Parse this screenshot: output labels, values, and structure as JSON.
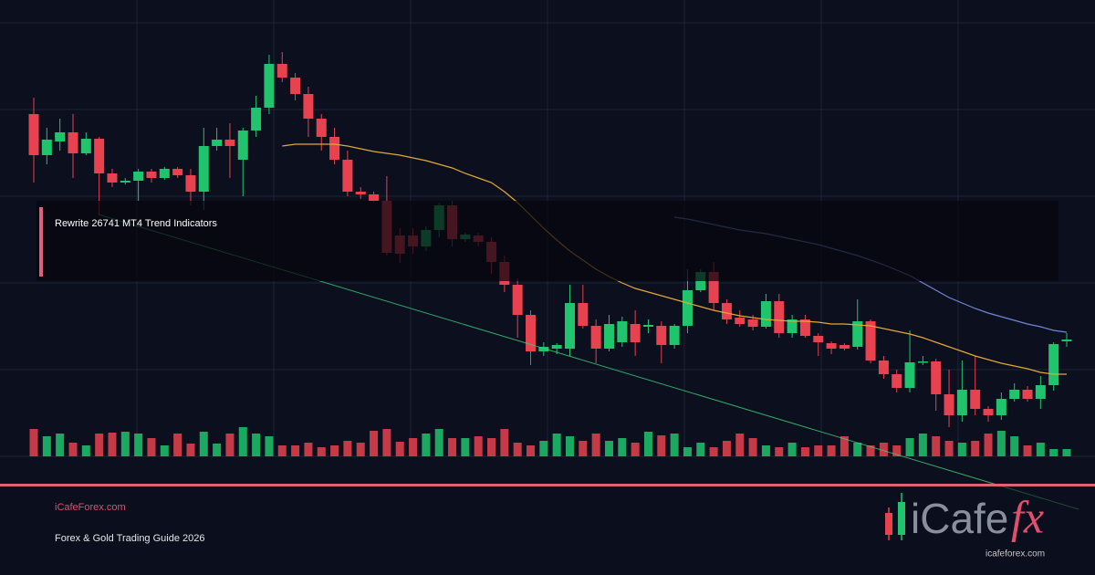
{
  "chart_data": {
    "type": "candlestick",
    "title": "Rewrite 26741 MT4 Trend Indicators",
    "site": "iCafeForex.com",
    "subtitle": "Forex & Gold Trading Guide 2026",
    "logo_text": "iCafe",
    "logo_fx": "fx",
    "logo_url": "icafeforex.com",
    "up_color": "#1fc46d",
    "down_color": "#e8414f",
    "ylim": [
      0,
      630
    ],
    "volume_lim": [
      0,
      100
    ],
    "open": [
      505,
      460,
      475,
      485,
      462,
      478,
      440,
      430,
      432,
      442,
      435,
      445,
      438,
      420,
      470,
      477,
      455,
      487,
      512,
      560,
      545,
      527,
      500,
      480,
      455,
      420,
      417,
      410,
      372,
      372,
      360,
      378,
      405,
      368,
      372,
      365,
      343,
      318,
      285,
      245,
      248,
      248,
      298,
      273,
      248,
      255,
      275,
      272,
      273,
      252,
      273,
      312,
      332,
      298,
      282,
      280,
      272,
      300,
      265,
      280,
      262,
      254,
      252,
      250,
      278,
      235,
      220,
      205,
      233,
      234,
      198,
      175,
      203,
      182,
      175,
      193,
      203,
      193,
      208,
      256
    ],
    "high": [
      523,
      490,
      500,
      505,
      485,
      480,
      445,
      435,
      445,
      445,
      447,
      447,
      445,
      490,
      490,
      495,
      490,
      525,
      570,
      573,
      550,
      535,
      505,
      490,
      465,
      425,
      420,
      437,
      380,
      380,
      382,
      408,
      410,
      375,
      375,
      370,
      350,
      325,
      290,
      255,
      254,
      318,
      318,
      280,
      285,
      283,
      290,
      280,
      278,
      275,
      335,
      335,
      343,
      302,
      290,
      285,
      308,
      308,
      285,
      285,
      265,
      256,
      254,
      302,
      280,
      240,
      225,
      268,
      240,
      237,
      225,
      235,
      240,
      185,
      200,
      210,
      207,
      218,
      255,
      265
    ],
    "low": [
      430,
      450,
      465,
      435,
      460,
      395,
      425,
      428,
      410,
      430,
      433,
      435,
      405,
      400,
      465,
      435,
      415,
      480,
      505,
      540,
      520,
      480,
      465,
      450,
      415,
      412,
      408,
      350,
      342,
      352,
      355,
      370,
      360,
      365,
      360,
      330,
      310,
      260,
      230,
      240,
      242,
      240,
      270,
      232,
      245,
      250,
      240,
      265,
      232,
      248,
      265,
      310,
      290,
      275,
      272,
      268,
      270,
      260,
      260,
      260,
      240,
      242,
      246,
      247,
      232,
      215,
      200,
      200,
      230,
      180,
      162,
      168,
      175,
      168,
      170,
      190,
      190,
      182,
      202,
      250
    ],
    "close": [
      460,
      477,
      485,
      462,
      478,
      440,
      430,
      432,
      442,
      435,
      445,
      438,
      420,
      470,
      477,
      470,
      487,
      512,
      560,
      545,
      527,
      500,
      480,
      455,
      420,
      417,
      410,
      353,
      352,
      360,
      378,
      405,
      368,
      373,
      365,
      343,
      318,
      285,
      245,
      250,
      252,
      298,
      273,
      248,
      275,
      278,
      255,
      274,
      252,
      273,
      312,
      332,
      298,
      280,
      275,
      272,
      300,
      265,
      280,
      262,
      255,
      248,
      248,
      278,
      235,
      220,
      205,
      233,
      234,
      198,
      175,
      203,
      182,
      175,
      193,
      203,
      193,
      208,
      253,
      258
    ],
    "volume": [
      30,
      22,
      25,
      15,
      12,
      25,
      26,
      27,
      25,
      20,
      12,
      25,
      14,
      27,
      14,
      25,
      32,
      25,
      22,
      12,
      12,
      15,
      10,
      12,
      17,
      15,
      28,
      30,
      16,
      20,
      25,
      30,
      20,
      20,
      22,
      20,
      30,
      15,
      12,
      17,
      25,
      22,
      17,
      25,
      17,
      20,
      15,
      27,
      23,
      25,
      10,
      15,
      10,
      17,
      25,
      20,
      12,
      10,
      15,
      10,
      12,
      12,
      22,
      15,
      12,
      15,
      12,
      20,
      25,
      22,
      17,
      15,
      17,
      25,
      28,
      22,
      12,
      15,
      8,
      8
    ],
    "series": [
      {
        "color": "#e0a83a",
        "values": [
          null,
          null,
          null,
          null,
          null,
          null,
          null,
          null,
          null,
          null,
          null,
          null,
          null,
          null,
          null,
          null,
          null,
          null,
          null,
          470,
          472,
          472,
          472,
          472,
          470,
          467,
          464,
          462,
          460,
          457,
          454,
          450,
          446,
          440,
          435,
          430,
          420,
          408,
          394,
          380,
          367,
          355,
          345,
          335,
          327,
          320,
          314,
          310,
          306,
          302,
          298,
          294,
          290,
          287,
          284,
          282,
          280,
          279,
          278,
          278,
          277,
          275,
          275,
          274,
          273,
          270,
          267,
          264,
          260,
          255,
          250,
          245,
          240,
          236,
          232,
          229,
          226,
          222,
          220,
          220
        ]
      },
      {
        "color": "#6f86d6",
        "values": [
          null,
          null,
          null,
          null,
          null,
          null,
          null,
          null,
          null,
          null,
          null,
          null,
          null,
          null,
          null,
          null,
          null,
          null,
          null,
          null,
          null,
          null,
          null,
          null,
          null,
          null,
          null,
          null,
          null,
          null,
          null,
          null,
          null,
          null,
          null,
          null,
          null,
          null,
          null,
          null,
          null,
          null,
          null,
          null,
          null,
          null,
          null,
          null,
          null,
          392,
          390,
          387,
          384,
          381,
          378,
          376,
          374,
          371,
          368,
          365,
          362,
          358,
          354,
          350,
          345,
          340,
          334,
          328,
          320,
          312,
          304,
          298,
          292,
          287,
          283,
          279,
          275,
          272,
          268,
          266
        ]
      }
    ]
  }
}
